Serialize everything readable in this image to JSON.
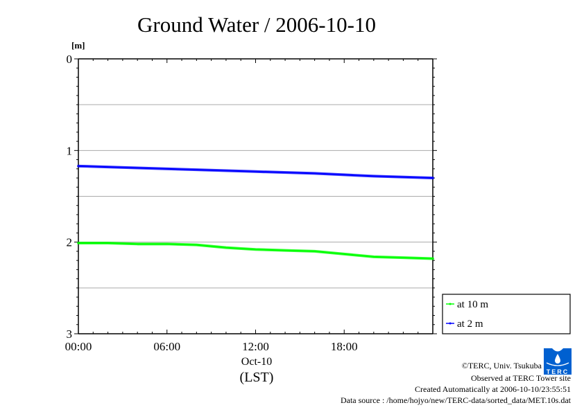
{
  "chart_data": {
    "type": "line",
    "title": "Ground Water / 2006-10-10",
    "ylabel": "[m]",
    "xlabel": "(LST)",
    "x_date_label": "Oct-10",
    "x_unit": "hours",
    "xlim": [
      0,
      24
    ],
    "ylim": [
      0,
      3
    ],
    "y_inverted": true,
    "y_ticks": [
      0,
      1,
      2,
      3
    ],
    "y_tick_labels": [
      "0",
      "1",
      "2",
      "3"
    ],
    "x_ticks": [
      0,
      6,
      12,
      18
    ],
    "x_tick_labels": [
      "00:00",
      "06:00",
      "12:00",
      "18:00"
    ],
    "grid": "horizontal",
    "legend_position": "right-bottom",
    "series": [
      {
        "name": "at 10 m",
        "color": "#00ff00",
        "x": [
          0,
          2,
          4,
          6,
          8,
          10,
          12,
          14,
          16,
          18,
          20,
          22,
          24
        ],
        "values": [
          2.01,
          2.01,
          2.02,
          2.02,
          2.03,
          2.06,
          2.08,
          2.09,
          2.1,
          2.13,
          2.16,
          2.17,
          2.18
        ]
      },
      {
        "name": "at 2 m",
        "color": "#0000ff",
        "x": [
          0,
          4,
          8,
          12,
          16,
          20,
          24
        ],
        "values": [
          1.17,
          1.19,
          1.21,
          1.23,
          1.25,
          1.28,
          1.3
        ]
      }
    ]
  },
  "credits": {
    "copyright": "©TERC, Univ. Tsukuba",
    "observed": "Observed at TERC Tower site",
    "created": "Created Automatically at 2006-10-10/23:55:51",
    "source": "Data source : /home/hojyo/new/TERC-data/sorted_data/MET.10s.dat",
    "logo_text": "TERC",
    "logo_color": "#0060d0"
  }
}
